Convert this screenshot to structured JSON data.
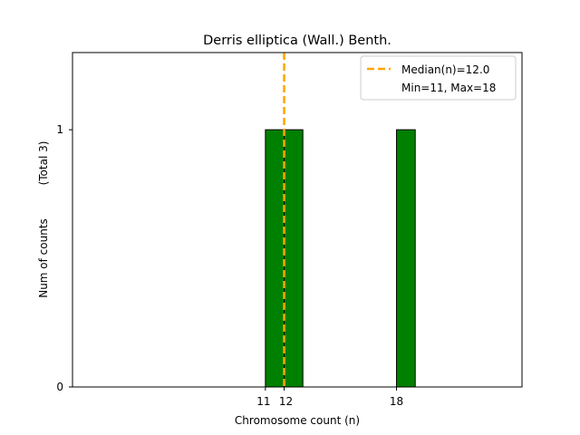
{
  "chart_data": {
    "type": "bar",
    "title": "Derris elliptica (Wall.) Benth.",
    "xlabel": "Chromosome count (n)",
    "ylabel": "Num of counts",
    "ylabel_total": "(Total 3)",
    "x_ticks": [
      11,
      12,
      18
    ],
    "x_tick_labels": [
      "11",
      "12",
      "18"
    ],
    "y_ticks": [
      0,
      1
    ],
    "y_tick_labels": [
      "0",
      "1"
    ],
    "bars": [
      {
        "x": 11,
        "count": 1
      },
      {
        "x": 12,
        "count": 1
      },
      {
        "x": 18,
        "count": 1
      }
    ],
    "xlim": [
      0.7,
      24.7
    ],
    "ylim": [
      0,
      1.3
    ],
    "baseline_range": [
      3,
      21.3
    ],
    "median": 12.0,
    "legend": {
      "position": "top-right",
      "median_label": "Median(n)=12.0",
      "range_label": "Min=11, Max=18"
    },
    "colors": {
      "bar": "#008000",
      "bar_edge": "#000000",
      "median": "#ffa500"
    },
    "grid": false
  }
}
